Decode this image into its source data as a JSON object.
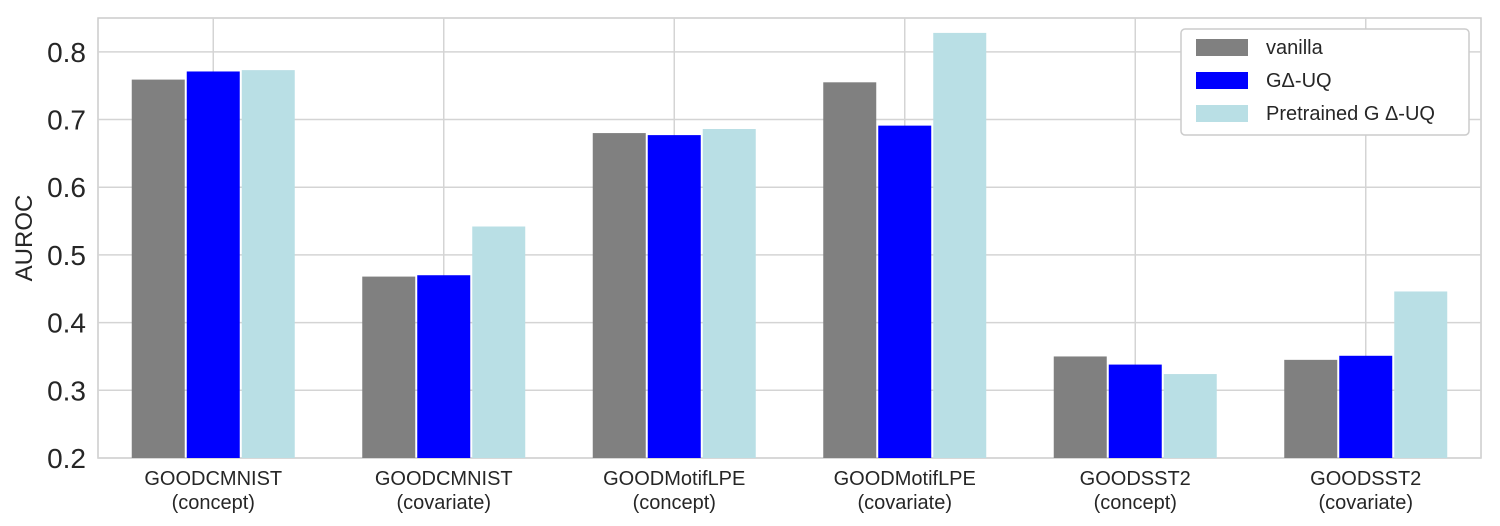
{
  "chart_data": {
    "type": "bar",
    "title": "",
    "xlabel": "",
    "ylabel": "AUROC",
    "ylim": [
      0.2,
      0.85
    ],
    "yticks": [
      "0.2",
      "0.3",
      "0.4",
      "0.5",
      "0.6",
      "0.7",
      "0.8"
    ],
    "categories": [
      [
        "GOODCMNIST",
        "(concept)"
      ],
      [
        "GOODCMNIST",
        "(covariate)"
      ],
      [
        "GOODMotifLPE",
        "(concept)"
      ],
      [
        "GOODMotifLPE",
        "(covariate)"
      ],
      [
        "GOODSST2",
        "(concept)"
      ],
      [
        "GOODSST2",
        "(covariate)"
      ]
    ],
    "series": [
      {
        "name": "vanilla",
        "color": "#808080",
        "values": [
          0.759,
          0.468,
          0.68,
          0.755,
          0.35,
          0.345
        ]
      },
      {
        "name": "GΔ-UQ",
        "color": "#0000ff",
        "values": [
          0.771,
          0.47,
          0.677,
          0.691,
          0.338,
          0.351
        ]
      },
      {
        "name": "Pretrained G Δ-UQ",
        "color": "#b9dfe5",
        "values": [
          0.773,
          0.542,
          0.686,
          0.828,
          0.324,
          0.446
        ]
      }
    ],
    "grid": true,
    "legend_position": "top-right"
  }
}
